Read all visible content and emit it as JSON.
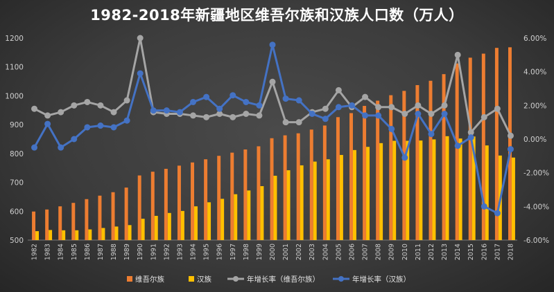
{
  "chart_data": {
    "type": "bar",
    "title": "1982-2018年新疆地区维吾尔族和汉族人口数（万人）",
    "categories": [
      "1982",
      "1983",
      "1984",
      "1985",
      "1986",
      "1987",
      "1988",
      "1989",
      "1990",
      "1991",
      "1992",
      "1993",
      "1994",
      "1995",
      "1996",
      "1997",
      "1998",
      "1999",
      "2000",
      "2001",
      "2002",
      "2003",
      "2004",
      "2005",
      "2006",
      "2007",
      "2008",
      "2009",
      "2010",
      "2011",
      "2012",
      "2013",
      "2014",
      "2015",
      "2016",
      "2017",
      "2018"
    ],
    "series": [
      {
        "name": "维吾尔族",
        "kind": "bar",
        "axis": "left",
        "color": "#ed7d31",
        "values": [
          599,
          606,
          617,
          629,
          642,
          654,
          666,
          682,
          724,
          737,
          747,
          758,
          769,
          780,
          792,
          803,
          814,
          825,
          853,
          863,
          870,
          883,
          897,
          926,
          940,
          965,
          983,
          1002,
          1017,
          1037,
          1052,
          1075,
          1112,
          1132,
          1146,
          1166,
          1168
        ]
      },
      {
        "name": "汉族",
        "kind": "bar",
        "axis": "left",
        "color": "#ffc000",
        "values": [
          531,
          535,
          534,
          534,
          537,
          542,
          547,
          552,
          574,
          584,
          594,
          601,
          617,
          631,
          643,
          659,
          672,
          687,
          723,
          742,
          759,
          772,
          780,
          795,
          812,
          823,
          836,
          844,
          844,
          845,
          849,
          860,
          852,
          859,
          828,
          793,
          786
        ]
      },
      {
        "name": "年增长率（维吾尔族）",
        "kind": "line",
        "axis": "right",
        "color": "#a5a5a5",
        "values": [
          1.8,
          1.4,
          1.6,
          2.0,
          2.2,
          2.0,
          1.6,
          2.3,
          6.0,
          1.6,
          1.5,
          1.5,
          1.4,
          1.3,
          1.5,
          1.3,
          1.5,
          1.4,
          3.4,
          1.0,
          1.0,
          1.6,
          1.8,
          2.9,
          1.9,
          2.5,
          1.9,
          1.9,
          1.5,
          2.0,
          1.5,
          2.0,
          5.0,
          0.4,
          1.3,
          1.8,
          0.2
        ]
      },
      {
        "name": "年增长率（汉族）",
        "kind": "line",
        "axis": "right",
        "color": "#4472c4",
        "values": [
          -0.5,
          0.9,
          -0.5,
          0.0,
          0.7,
          0.8,
          0.7,
          1.1,
          3.9,
          1.7,
          1.7,
          1.6,
          2.2,
          2.5,
          1.8,
          2.6,
          2.2,
          2.0,
          5.6,
          2.4,
          2.3,
          1.5,
          1.2,
          1.9,
          2.0,
          1.4,
          1.4,
          0.6,
          -1.1,
          1.5,
          0.3,
          1.5,
          -0.4,
          0.1,
          -4.0,
          -4.4,
          -0.6
        ]
      }
    ],
    "left_axis": {
      "min": 500,
      "max": 1200,
      "ticks": [
        "500",
        "600",
        "700",
        "800",
        "900",
        "1000",
        "1100",
        "1200"
      ]
    },
    "right_axis": {
      "min": -6,
      "max": 6,
      "ticks": [
        "-6.00%",
        "-4.00%",
        "-2.00%",
        "0.00%",
        "2.00%",
        "4.00%",
        "6.00%"
      ]
    },
    "legend_position": "bottom",
    "grid": false
  }
}
